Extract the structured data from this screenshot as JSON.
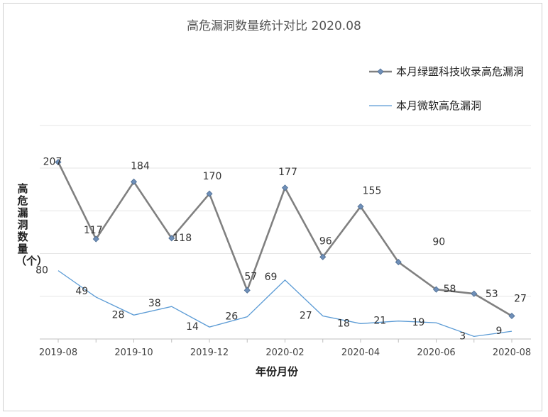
{
  "chart_data": {
    "type": "line",
    "title": "高危漏洞数量统计对比 2020.08",
    "xlabel": "年份月份",
    "ylabel": "高危漏洞数量（个）",
    "x": [
      "2019-08",
      "2019-09",
      "2019-10",
      "2019-11",
      "2019-12",
      "2020-01",
      "2020-02",
      "2020-03",
      "2020-04",
      "2020-05",
      "2020-06",
      "2020-07",
      "2020-08"
    ],
    "tick_labels": [
      "2019-08",
      "2019-10",
      "2019-12",
      "2020-02",
      "2020-04",
      "2020-06",
      "2020-08"
    ],
    "ylim": [
      0,
      210
    ],
    "grid": true,
    "legend_position": "right",
    "series": [
      {
        "name": "本月绿盟科技收录高危漏洞",
        "values": [
          207,
          117,
          184,
          118,
          170,
          57,
          177,
          96,
          155,
          90,
          58,
          53,
          27
        ],
        "color": "#808080",
        "marker": "diamond",
        "marker_color": "#6f8fb8"
      },
      {
        "name": "本月微软高危漏洞",
        "values": [
          80,
          49,
          28,
          38,
          14,
          26,
          69,
          27,
          18,
          21,
          19,
          3,
          9
        ],
        "color": "#5b9bd5",
        "marker": "none"
      }
    ]
  }
}
